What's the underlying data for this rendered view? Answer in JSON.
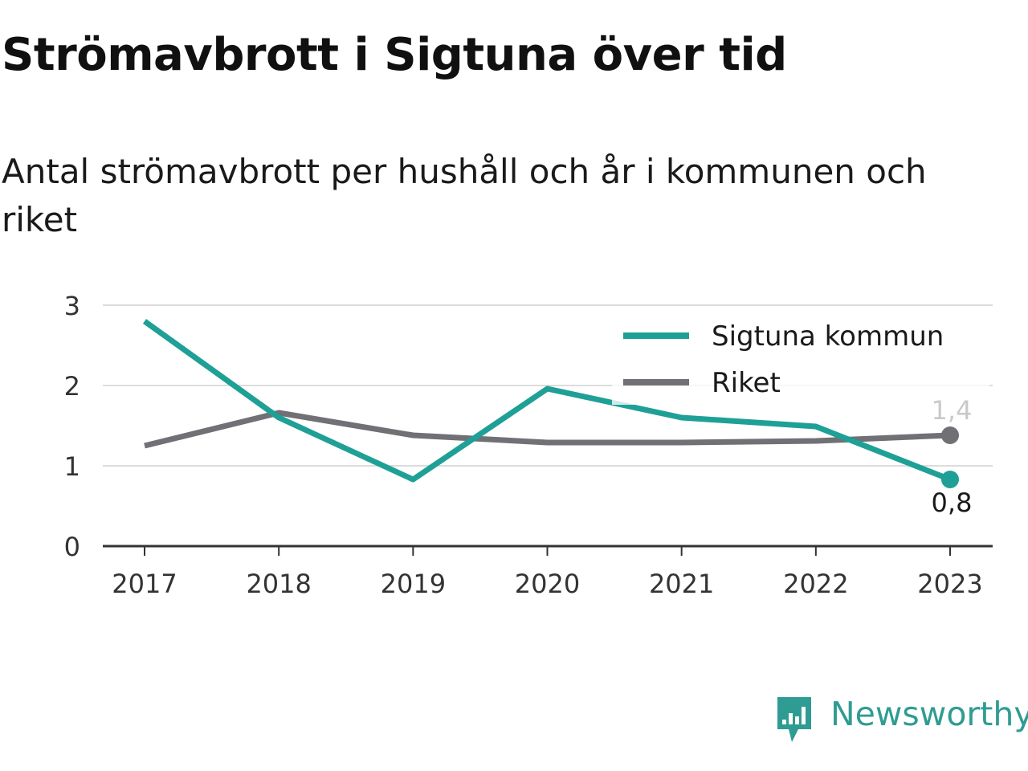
{
  "header": {
    "title": "Strömavbrott i Sigtuna över tid",
    "subtitle": "Antal strömavbrott per hushåll och år i kommunen och riket"
  },
  "brand": {
    "name": "Newsworthy",
    "color": "#2f9c93"
  },
  "chart_data": {
    "type": "line",
    "title": "Strömavbrott i Sigtuna över tid",
    "subtitle": "Antal strömavbrott per hushåll och år i kommunen och riket",
    "x": [
      "2017",
      "2018",
      "2019",
      "2020",
      "2021",
      "2022",
      "2023"
    ],
    "yticks": [
      "0",
      "1",
      "2",
      "3"
    ],
    "ylim": [
      0,
      3
    ],
    "grid": true,
    "legend": "top-right",
    "series": [
      {
        "name": "Sigtuna kommun",
        "color": "#1fa096",
        "values": [
          2.8,
          1.6,
          0.83,
          1.96,
          1.6,
          1.49,
          0.83
        ],
        "end_label": "0,8"
      },
      {
        "name": "Riket",
        "color": "#707075",
        "values": [
          1.25,
          1.66,
          1.38,
          1.29,
          1.29,
          1.31,
          1.38
        ],
        "end_label": "1,4"
      }
    ]
  }
}
